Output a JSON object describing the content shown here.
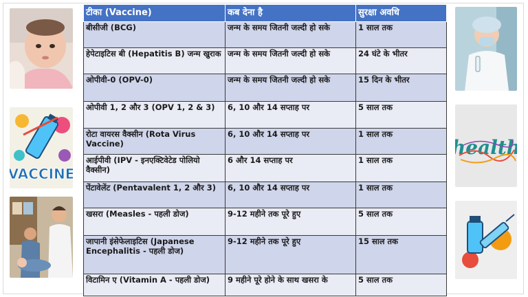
{
  "table": {
    "headers": [
      "टीका (Vaccine)",
      "कब देना है",
      "सुरक्षा अवधि"
    ],
    "rows": [
      [
        "बीसीजी (BCG)",
        "जन्म के समय जितनी जल्दी हो सके",
        "1 साल तक"
      ],
      [
        "हेपेटाइटिस बी (Hepatitis B) जन्म खुराक",
        "जन्म के समय जितनी जल्दी हो सके",
        "24 घंटे के भीतर"
      ],
      [
        "ओपीवी-0 (OPV-0)",
        " जन्म के समय जितनी जल्दी हो सके",
        "15 दिन के भीतर"
      ],
      [
        "ओपीवी 1, 2 और 3 (OPV 1, 2 & 3)",
        "6, 10 और 14 सप्ताह पर",
        "5 साल तक"
      ],
      [
        "रोटा वायरस वैक्सीन (Rota Virus Vaccine)",
        "6, 10 और 14 सप्ताह पर",
        "1 साल तक"
      ],
      [
        "आईपीवी (IPV - इनएक्टिवेटेड पोलियो वैक्सीन)",
        "6 और 14 सप्ताह पर",
        "1 साल तक"
      ],
      [
        "पेंटावेलेंट (Pentavalent 1, 2 और 3)",
        " 6, 10 और 14 सप्ताह पर",
        "1 साल तक"
      ],
      [
        "खसरा (Measles - पहली डोज)",
        "9-12 महीने तक पूरे हुए",
        "5 साल तक"
      ],
      [
        "जापानी इंसेफेलाइटिस (Japanese Encephalitis - पहली डोज)",
        "9-12 महीने तक पूरे हुए",
        "15 साल तक"
      ],
      [
        "विटामिन ए (Vitamin A - पहली डोज)",
        "9 महीने पूरे होने के साथ खसरा के",
        "5 साल तक"
      ]
    ]
  },
  "images": {
    "left": [
      "baby-photo",
      "vaccine-illustration",
      "doctor-child-photo"
    ],
    "right": [
      "nurse-vial-photo",
      "health-word-art",
      "syringe-vial-illustration"
    ]
  },
  "colors": {
    "header_bg": "#4472c4",
    "row_odd": "#cfd5ea",
    "row_even": "#e9ebf5"
  }
}
